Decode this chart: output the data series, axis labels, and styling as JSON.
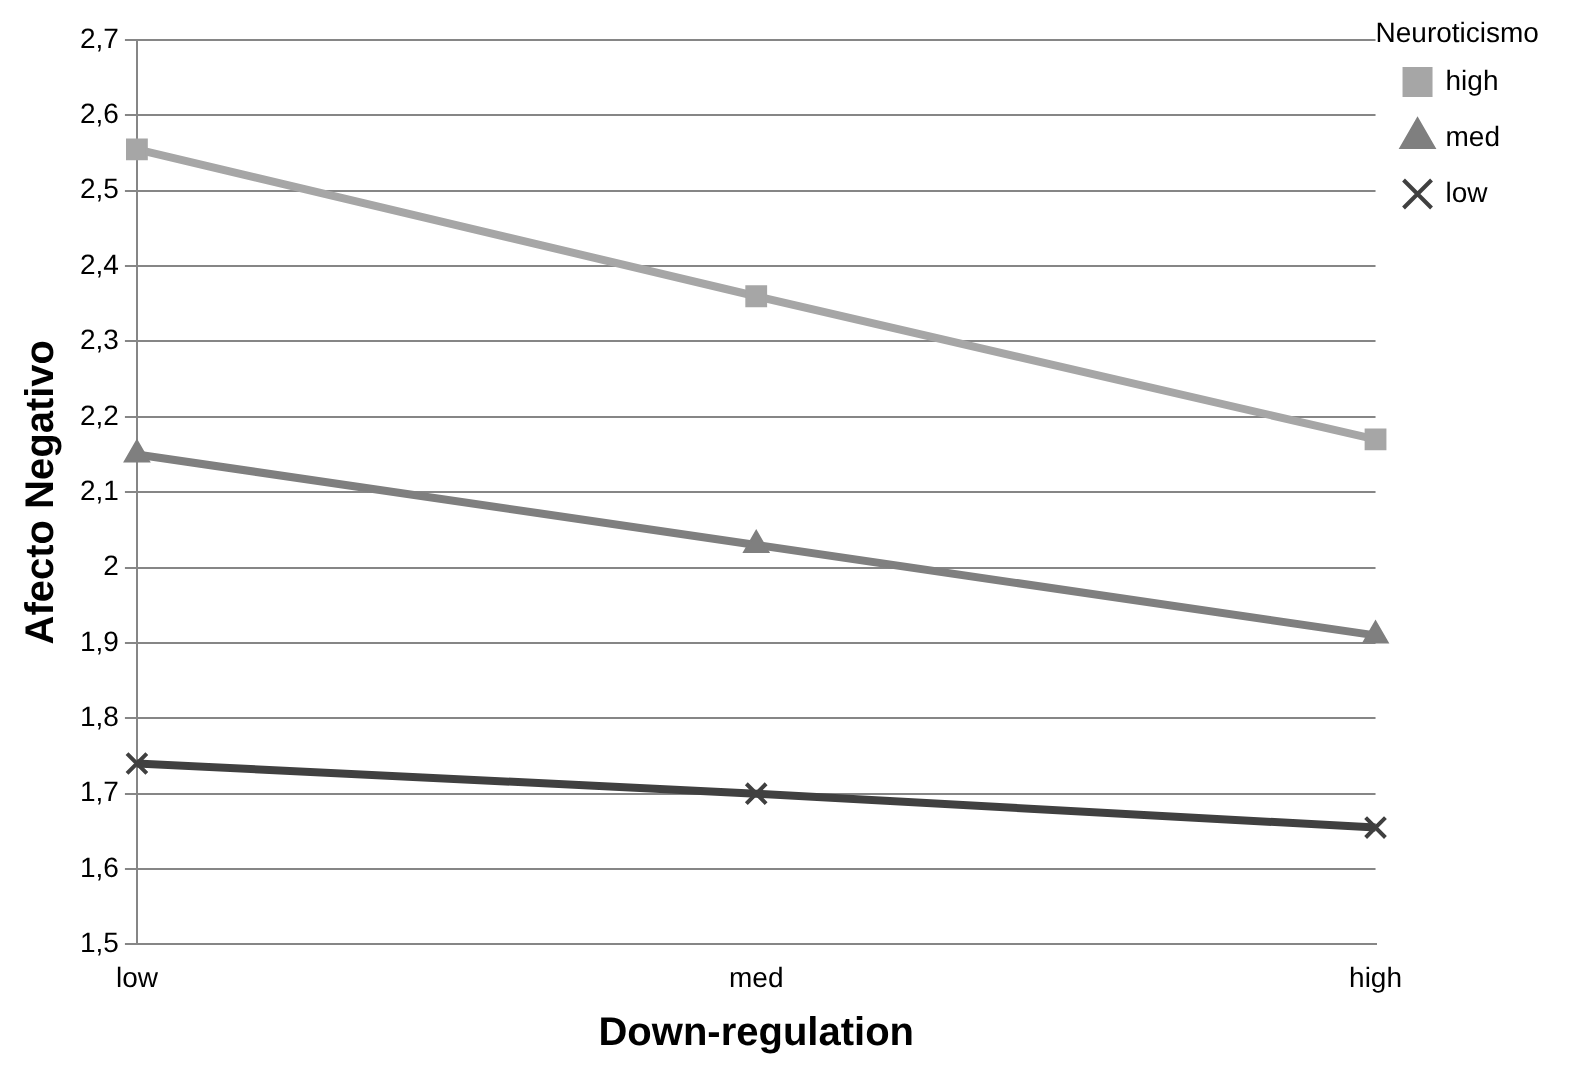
{
  "chart_data": {
    "type": "line",
    "xlabel": "Down-regulation",
    "ylabel": "Afecto Negativo",
    "legend_title": "Neuroticismo",
    "categories": [
      "low",
      "med",
      "high"
    ],
    "series": [
      {
        "name": "high",
        "color": "#a6a6a6",
        "marker": "square",
        "values": [
          2.555,
          2.36,
          2.17
        ]
      },
      {
        "name": "med",
        "color": "#7f7f7f",
        "marker": "triangle",
        "values": [
          2.15,
          2.03,
          1.91
        ]
      },
      {
        "name": "low",
        "color": "#404040",
        "marker": "cross",
        "values": [
          1.74,
          1.7,
          1.655
        ]
      }
    ],
    "ylim": [
      1.5,
      2.7
    ],
    "yticks": [
      {
        "value": 1.5,
        "label": "1,5"
      },
      {
        "value": 1.6,
        "label": "1,6"
      },
      {
        "value": 1.7,
        "label": "1,7"
      },
      {
        "value": 1.8,
        "label": "1,8"
      },
      {
        "value": 1.9,
        "label": "1,9"
      },
      2,
      {
        "value": 2.1,
        "label": "2,1"
      },
      {
        "value": 2.2,
        "label": "2,2"
      },
      {
        "value": 2.3,
        "label": "2,3"
      },
      {
        "value": 2.4,
        "label": "2,4"
      },
      {
        "value": 2.5,
        "label": "2,5"
      },
      {
        "value": 2.6,
        "label": "2,6"
      },
      {
        "value": 2.7,
        "label": "2,7"
      }
    ],
    "grid": "y",
    "legend": "right",
    "line_style": "solid"
  }
}
